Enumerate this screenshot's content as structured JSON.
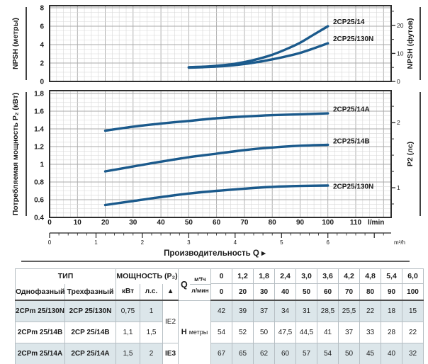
{
  "colors": {
    "curve": "#1b5a8c",
    "curve_label": "#16365c",
    "grid_minor": "#d7d7d7",
    "grid_major": "#a9a9a9",
    "plot_border": "#2e2e2e",
    "text": "#1a1a1a",
    "table_shade": "#dce6ea",
    "table_border": "#b6bec3"
  },
  "chart_data": [
    {
      "type": "line",
      "name": "npsh-chart",
      "ylabel": "NPSH (метры)",
      "ylabel_right": "NPSH (футов)",
      "ylim": [
        0,
        8.3
      ],
      "yticks": [
        0,
        2,
        4,
        6,
        8
      ],
      "ytick_labels": [
        "0",
        "2",
        "4",
        "6",
        "8"
      ],
      "right_ticks": [
        {
          "ft": 0,
          "label": "0"
        },
        {
          "ft": 5
        },
        {
          "ft": 10,
          "label": "10"
        },
        {
          "ft": 15
        },
        {
          "ft": 20,
          "label": "20"
        },
        {
          "ft": 25
        }
      ],
      "grid": true,
      "series": [
        {
          "name": "2CP25/14",
          "label_at": 6.45,
          "x": [
            50,
            55,
            60,
            65,
            70,
            75,
            80,
            85,
            90,
            95,
            100
          ],
          "y": [
            1.55,
            1.6,
            1.7,
            1.85,
            2.1,
            2.45,
            2.9,
            3.5,
            4.2,
            5.1,
            6.0
          ]
        },
        {
          "name": "2CP25/130N",
          "label_at": 4.6,
          "x": [
            50,
            55,
            60,
            65,
            70,
            75,
            80,
            85,
            90,
            95,
            100
          ],
          "y": [
            1.5,
            1.55,
            1.62,
            1.73,
            1.9,
            2.12,
            2.4,
            2.72,
            3.1,
            3.6,
            4.15
          ]
        }
      ]
    },
    {
      "type": "line",
      "name": "p2-chart",
      "ylabel": "Потребляемая мощность P₂ (кВт)",
      "ylabel_right": "P2 (лс)",
      "ylim": [
        0.4,
        1.83
      ],
      "yticks": [
        0.4,
        0.6,
        0.8,
        1,
        1.2,
        1.4,
        1.6,
        1.8
      ],
      "ytick_labels": [
        "0.4",
        "0.6",
        "0.8",
        "1",
        "1.2",
        "1.4",
        "1.6",
        "1.8"
      ],
      "right_ticks": [
        {
          "hp": 0.75
        },
        {
          "hp": 1,
          "label": "1"
        },
        {
          "hp": 1.25
        },
        {
          "hp": 1.5
        },
        {
          "hp": 1.75
        },
        {
          "hp": 2,
          "label": "2"
        },
        {
          "hp": 2.25
        }
      ],
      "grid": true,
      "series": [
        {
          "name": "2CP25/14A",
          "label_at": 1.62,
          "x": [
            20,
            30,
            40,
            50,
            60,
            70,
            80,
            90,
            100
          ],
          "y": [
            1.38,
            1.425,
            1.46,
            1.49,
            1.52,
            1.54,
            1.555,
            1.565,
            1.575
          ]
        },
        {
          "name": "2CP25/14B",
          "label_at": 1.26,
          "x": [
            20,
            30,
            40,
            50,
            60,
            70,
            80,
            90,
            100
          ],
          "y": [
            0.92,
            0.975,
            1.03,
            1.08,
            1.12,
            1.16,
            1.19,
            1.21,
            1.22
          ]
        },
        {
          "name": "2CP25/130N",
          "label_at": 0.75,
          "x": [
            20,
            30,
            40,
            50,
            60,
            70,
            80,
            90,
            100
          ],
          "y": [
            0.54,
            0.585,
            0.63,
            0.67,
            0.7,
            0.725,
            0.745,
            0.755,
            0.76
          ]
        }
      ]
    }
  ],
  "xaxis": {
    "lmin_ticks": [
      0,
      10,
      20,
      30,
      40,
      50,
      60,
      70,
      80,
      90,
      100,
      110
    ],
    "lmin_unit": "l/min",
    "m3h_ticks": [
      0,
      1,
      2,
      3,
      4,
      5,
      6
    ],
    "m3h_unit": "m³/h",
    "xlabel": "Производительность Q ▸"
  },
  "table": {
    "header": {
      "tip": "ТИП",
      "single_phase": "Однофазный",
      "three_phase": "Трехфазный",
      "power": "МОЩНОСТЬ (P₂)",
      "kw": "кВт",
      "hp": "л.с.",
      "triangle": "▲",
      "q": "Q",
      "m3h": "м³/ч",
      "lmin": "л/мин",
      "m3h_values": [
        "0",
        "1,2",
        "1,8",
        "2,4",
        "3,0",
        "3,6",
        "4,2",
        "4,8",
        "5,4",
        "6,0"
      ],
      "lmin_values": [
        "0",
        "20",
        "30",
        "40",
        "50",
        "60",
        "70",
        "80",
        "90",
        "100"
      ]
    },
    "h_label": "H",
    "h_unit": "метры",
    "ie2": "IE2",
    "ie3": "IE3",
    "rows": [
      {
        "single": "2CPm 25/130N",
        "three": "2CP 25/130N",
        "kw": "0,75",
        "hp": "1",
        "values": [
          "42",
          "39",
          "37",
          "34",
          "31",
          "28,5",
          "25,5",
          "22",
          "18",
          "15"
        ]
      },
      {
        "single": "2CPm 25/14B",
        "three": "2CP 25/14B",
        "kw": "1,1",
        "hp": "1,5",
        "values": [
          "54",
          "52",
          "50",
          "47,5",
          "44,5",
          "41",
          "37",
          "33",
          "28",
          "22"
        ]
      },
      {
        "single": "2CPm 25/14A",
        "three": "2CP 25/14A",
        "kw": "1,5",
        "hp": "2",
        "values": [
          "67",
          "65",
          "62",
          "60",
          "57",
          "54",
          "50",
          "45",
          "40",
          "32"
        ]
      }
    ]
  }
}
